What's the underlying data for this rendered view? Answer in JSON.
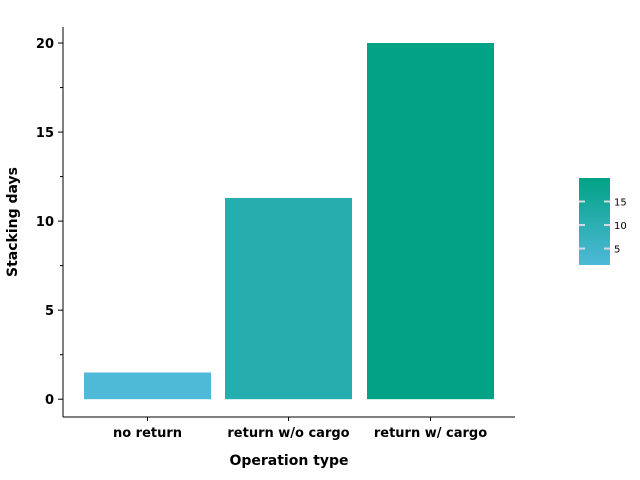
{
  "chart_data": {
    "type": "bar",
    "categories": [
      "no return",
      "return w/o cargo",
      "return w/ cargo"
    ],
    "values": [
      1.5,
      11.3,
      20.0
    ],
    "xlabel": "Operation type",
    "ylabel": "Stacking days",
    "ylim": [
      -1,
      20.9
    ],
    "yticks": [
      0,
      5,
      10,
      15,
      20
    ],
    "grid": false,
    "colormap": {
      "low": "#4fb9d8",
      "high": "#02a286",
      "min": 1.5,
      "max": 20.0
    },
    "colorbar": {
      "ticks": [
        5,
        10,
        15
      ],
      "placement": "right"
    }
  }
}
